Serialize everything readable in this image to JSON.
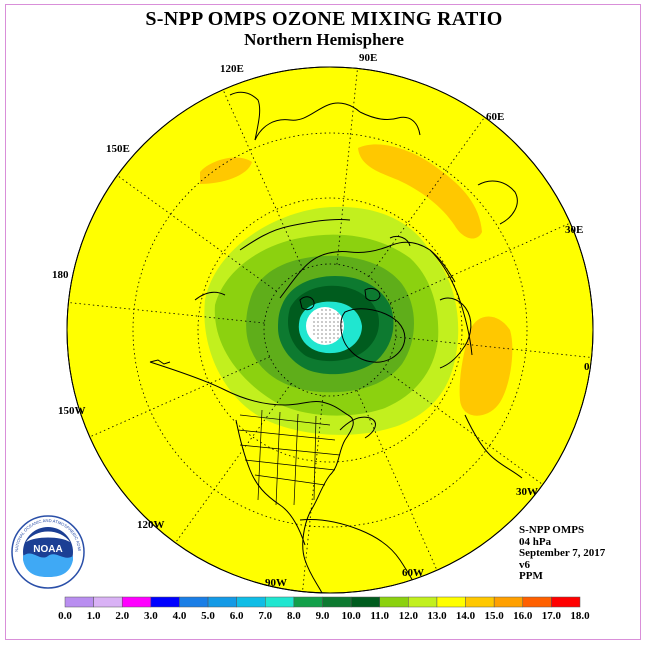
{
  "title": "S-NPP OMPS OZONE MIXING RATIO",
  "subtitle": "Northern Hemisphere",
  "longitude_labels": [
    "90E",
    "60E",
    "30E",
    "0",
    "30W",
    "60W",
    "90W",
    "120W",
    "150W",
    "180",
    "150E",
    "120E"
  ],
  "info": {
    "instrument": "S-NPP OMPS",
    "level": "04 hPa",
    "date": "September 7, 2017",
    "version": "v6",
    "units": "PPM"
  },
  "colorbar": {
    "ticks": [
      "0.0",
      "1.0",
      "2.0",
      "3.0",
      "4.0",
      "5.0",
      "6.0",
      "7.0",
      "8.0",
      "9.0",
      "10.0",
      "11.0",
      "12.0",
      "13.0",
      "14.0",
      "15.0",
      "16.0",
      "17.0",
      "18.0"
    ],
    "colors": [
      "#b98ef0",
      "#d9b2f5",
      "#ff00ff",
      "#0000ff",
      "#1a7ee6",
      "#149ae6",
      "#10bde6",
      "#20e6d0",
      "#13a04a",
      "#0d7a30",
      "#005c1e",
      "#8cd10f",
      "#c2f01e",
      "#ffff00",
      "#ffc800",
      "#ffa000",
      "#ff6000",
      "#ff0000",
      "#8b4513"
    ]
  },
  "colors": {
    "background_field": "#ffff00",
    "low_ozone_core": "#ffffff",
    "high_ozone_patch": "#ffc800",
    "coastline": "#000000",
    "frame": "#d98fd9"
  },
  "logo": {
    "text": "NOAA",
    "ring_text": "NATIONAL OCEANIC AND ATMOSPHERIC ADMINISTRATION · U.S. DEPARTMENT OF COMMERCE"
  }
}
